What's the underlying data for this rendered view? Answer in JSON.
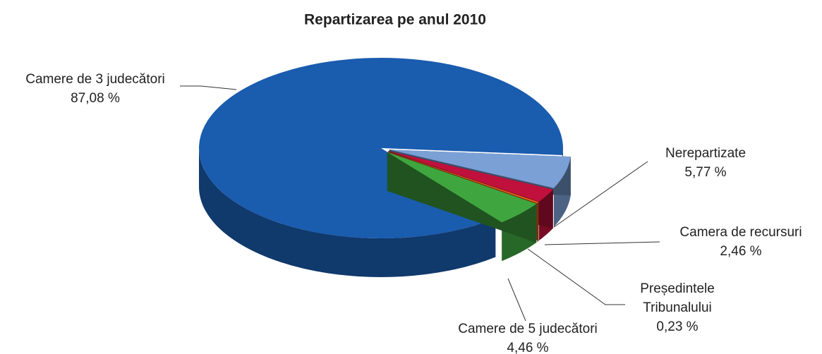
{
  "chart_data": {
    "type": "pie",
    "title": "Repartizarea pe anul 2010",
    "categories": [
      "Camere de 3 judecători",
      "Nerepartizate",
      "Camera de recursuri",
      "Președintele Tribunalului",
      "Camere de 5 judecători"
    ],
    "values": [
      87.08,
      5.77,
      2.46,
      0.23,
      4.46
    ],
    "value_labels": [
      "87,08 %",
      "5,77 %",
      "2,46 %",
      "0,23 %",
      "4,46 %"
    ],
    "colors": [
      "#1a5cae",
      "#7aa0d6",
      "#c0103c",
      "#e8601c",
      "#3fa63f"
    ]
  }
}
